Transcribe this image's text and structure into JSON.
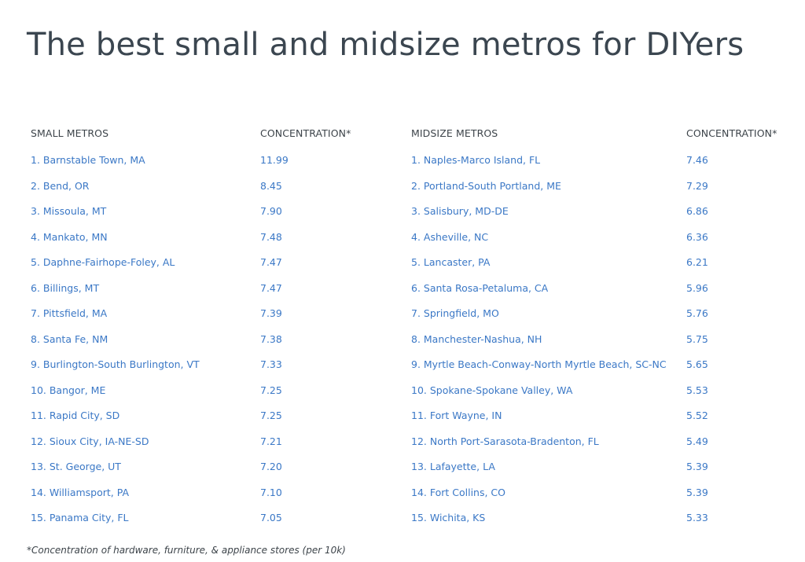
{
  "title": "The best small and midsize metros for DIYers",
  "headers": {
    "small_metros": "SMALL METROS",
    "small_concentration": "CONCENTRATION*",
    "midsize_metros": "MIDSIZE METROS",
    "midsize_concentration": "CONCENTRATION*"
  },
  "rows": [
    {
      "small": "1. Barnstable Town, MA",
      "small_value": "11.99",
      "mid": "1. Naples-Marco Island, FL",
      "mid_value": "7.46"
    },
    {
      "small": "2. Bend, OR",
      "small_value": "8.45",
      "mid": "2. Portland-South Portland, ME",
      "mid_value": "7.29"
    },
    {
      "small": "3. Missoula, MT",
      "small_value": "7.90",
      "mid": "3. Salisbury, MD-DE",
      "mid_value": "6.86"
    },
    {
      "small": "4. Mankato, MN",
      "small_value": "7.48",
      "mid": "4. Asheville, NC",
      "mid_value": "6.36"
    },
    {
      "small": "5. Daphne-Fairhope-Foley, AL",
      "small_value": "7.47",
      "mid": "5. Lancaster, PA",
      "mid_value": "6.21"
    },
    {
      "small": "6. Billings, MT",
      "small_value": "7.47",
      "mid": "6. Santa Rosa-Petaluma, CA",
      "mid_value": "5.96"
    },
    {
      "small": "7. Pittsfield, MA",
      "small_value": "7.39",
      "mid": "7. Springfield, MO",
      "mid_value": "5.76"
    },
    {
      "small": "8. Santa Fe, NM",
      "small_value": "7.38",
      "mid": "8. Manchester-Nashua, NH",
      "mid_value": "5.75"
    },
    {
      "small": "9. Burlington-South Burlington, VT",
      "small_value": "7.33",
      "mid": "9. Myrtle Beach-Conway-North Myrtle Beach, SC-NC",
      "mid_value": "5.65"
    },
    {
      "small": "10. Bangor, ME",
      "small_value": "7.25",
      "mid": "10. Spokane-Spokane Valley, WA",
      "mid_value": "5.53"
    },
    {
      "small": "11. Rapid City, SD",
      "small_value": "7.25",
      "mid": "11. Fort Wayne, IN",
      "mid_value": "5.52"
    },
    {
      "small": "12. Sioux City, IA-NE-SD",
      "small_value": "7.21",
      "mid": "12. North Port-Sarasota-Bradenton, FL",
      "mid_value": "5.49"
    },
    {
      "small": "13. St. George, UT",
      "small_value": "7.20",
      "mid": "13. Lafayette, LA",
      "mid_value": "5.39"
    },
    {
      "small": "14. Williamsport, PA",
      "small_value": "7.10",
      "mid": "14. Fort Collins, CO",
      "mid_value": "5.39"
    },
    {
      "small": "15. Panama City, FL",
      "small_value": "7.05",
      "mid": "15. Wichita, KS",
      "mid_value": "5.33"
    }
  ],
  "footnote": "*Concentration of hardware, furniture, & appliance stores (per 10k)",
  "colors": {
    "link": "#3b78c6",
    "title": "#3b4650",
    "text": "#3d444a"
  }
}
